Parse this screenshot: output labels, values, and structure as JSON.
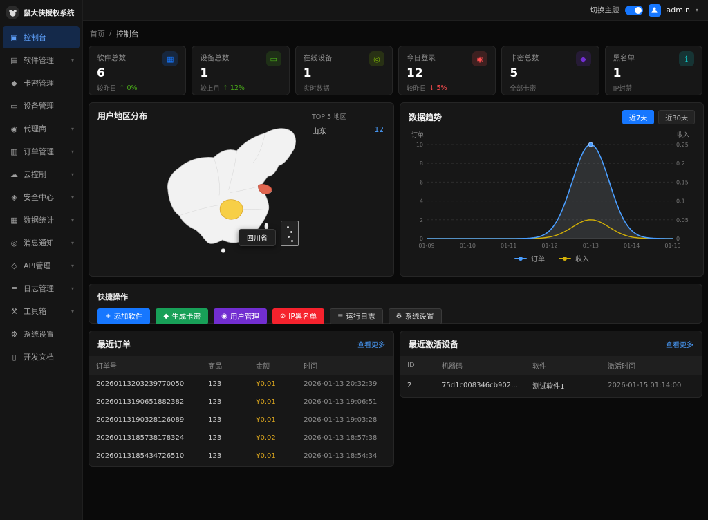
{
  "app": {
    "title": "鼠大侠授权系统"
  },
  "header": {
    "theme_label": "切换主题",
    "theme_on": true,
    "username": "admin"
  },
  "breadcrumb": {
    "items": [
      "首页",
      "控制台"
    ],
    "separator": "/"
  },
  "sidebar": {
    "items": [
      {
        "label": "控制台",
        "icon": "dashboard-icon",
        "active": true,
        "expandable": false
      },
      {
        "label": "软件管理",
        "icon": "software-icon",
        "active": false,
        "expandable": true
      },
      {
        "label": "卡密管理",
        "icon": "key-icon",
        "active": false,
        "expandable": false
      },
      {
        "label": "设备管理",
        "icon": "device-icon",
        "active": false,
        "expandable": false
      },
      {
        "label": "代理商",
        "icon": "agent-icon",
        "active": false,
        "expandable": true
      },
      {
        "label": "订单管理",
        "icon": "order-icon",
        "active": false,
        "expandable": true
      },
      {
        "label": "云控制",
        "icon": "cloud-icon",
        "active": false,
        "expandable": true
      },
      {
        "label": "安全中心",
        "icon": "security-icon",
        "active": false,
        "expandable": true
      },
      {
        "label": "数据统计",
        "icon": "stats-icon",
        "active": false,
        "expandable": true
      },
      {
        "label": "消息通知",
        "icon": "notice-icon",
        "active": false,
        "expandable": true
      },
      {
        "label": "API管理",
        "icon": "api-icon",
        "active": false,
        "expandable": true
      },
      {
        "label": "日志管理",
        "icon": "log-icon",
        "active": false,
        "expandable": true
      },
      {
        "label": "工具箱",
        "icon": "toolbox-icon",
        "active": false,
        "expandable": true
      },
      {
        "label": "系统设置",
        "icon": "settings-icon",
        "active": false,
        "expandable": false
      },
      {
        "label": "开发文档",
        "icon": "docs-icon",
        "active": false,
        "expandable": false
      }
    ]
  },
  "stats": [
    {
      "label": "软件总数",
      "value": "6",
      "sub": "较昨日",
      "trend": "0%",
      "trend_dir": "up",
      "icon": "grid-icon",
      "color": "#1677ff"
    },
    {
      "label": "设备总数",
      "value": "1",
      "sub": "较上月",
      "trend": "12%",
      "trend_dir": "up",
      "icon": "monitor-icon",
      "color": "#49aa19"
    },
    {
      "label": "在线设备",
      "value": "1",
      "sub": "实时数据",
      "trend": "",
      "trend_dir": "",
      "icon": "online-icon",
      "color": "#7cb305"
    },
    {
      "label": "今日登录",
      "value": "12",
      "sub": "较昨日",
      "trend": "5%",
      "trend_dir": "down",
      "icon": "user-icon",
      "color": "#ff4d4f"
    },
    {
      "label": "卡密总数",
      "value": "5",
      "sub": "全部卡密",
      "trend": "",
      "trend_dir": "",
      "icon": "card-key-icon",
      "color": "#722ed1"
    },
    {
      "label": "黑名单",
      "value": "1",
      "sub": "IP封禁",
      "trend": "",
      "trend_dir": "",
      "icon": "info-icon",
      "color": "#13c2c2"
    }
  ],
  "region_panel": {
    "title": "用户地区分布",
    "top_label": "TOP 5 地区",
    "regions": [
      {
        "name": "山东",
        "value": "12"
      }
    ],
    "tooltip": "四川省",
    "highlight_color": "#f7cf47"
  },
  "trend_panel": {
    "title": "数据趋势",
    "ranges": [
      {
        "label": "近7天",
        "active": true
      },
      {
        "label": "近30天",
        "active": false
      }
    ],
    "chart_data": {
      "type": "line",
      "x": [
        "01-09",
        "01-10",
        "01-11",
        "01-12",
        "01-13",
        "01-14",
        "01-15"
      ],
      "series": [
        {
          "name": "订单",
          "color": "#4a9eff",
          "axis": "left",
          "values": [
            0,
            0,
            0,
            0,
            10,
            0,
            0
          ]
        },
        {
          "name": "收入",
          "color": "#d4b106",
          "axis": "right",
          "values": [
            0,
            0,
            0,
            0,
            0.05,
            0,
            0
          ]
        }
      ],
      "left_axis": {
        "label": "订单",
        "ticks": [
          0,
          2,
          4,
          6,
          8,
          10
        ],
        "max": 10
      },
      "right_axis": {
        "label": "收入",
        "ticks": [
          0,
          0.05,
          0.1,
          0.15,
          0.2,
          0.25
        ],
        "max": 0.25
      },
      "grid": "dashed",
      "legend_position": "bottom",
      "smooth": true
    }
  },
  "quick_panel": {
    "title": "快捷操作",
    "buttons": [
      {
        "label": "添加软件",
        "icon": "plus-icon",
        "bg": "#1677ff",
        "outline": false
      },
      {
        "label": "生成卡密",
        "icon": "key-icon",
        "bg": "#18a058",
        "outline": false
      },
      {
        "label": "用户管理",
        "icon": "user-icon",
        "bg": "#722ed1",
        "outline": false
      },
      {
        "label": "IP黑名单",
        "icon": "ban-icon",
        "bg": "#f5222d",
        "outline": false
      },
      {
        "label": "运行日志",
        "icon": "log-icon",
        "bg": "#262626",
        "outline": true
      },
      {
        "label": "系统设置",
        "icon": "gear-icon",
        "bg": "#262626",
        "outline": true
      }
    ]
  },
  "orders_panel": {
    "title": "最近订单",
    "more": "查看更多",
    "columns": [
      "订单号",
      "商品",
      "金额",
      "时间"
    ],
    "rows": [
      [
        "20260113203239770050",
        "123",
        "¥0.01",
        "2026-01-13 20:32:39"
      ],
      [
        "20260113190651882382",
        "123",
        "¥0.01",
        "2026-01-13 19:06:51"
      ],
      [
        "20260113190328126089",
        "123",
        "¥0.01",
        "2026-01-13 19:03:28"
      ],
      [
        "20260113185738178324",
        "123",
        "¥0.02",
        "2026-01-13 18:57:38"
      ],
      [
        "20260113185434726510",
        "123",
        "¥0.01",
        "2026-01-13 18:54:34"
      ]
    ]
  },
  "devices_panel": {
    "title": "最近激活设备",
    "more": "查看更多",
    "columns": [
      "ID",
      "机器码",
      "软件",
      "激活时间"
    ],
    "rows": [
      [
        "2",
        "75d1c008346cb902...",
        "测试软件1",
        "2026-01-15 01:14:00"
      ]
    ]
  }
}
